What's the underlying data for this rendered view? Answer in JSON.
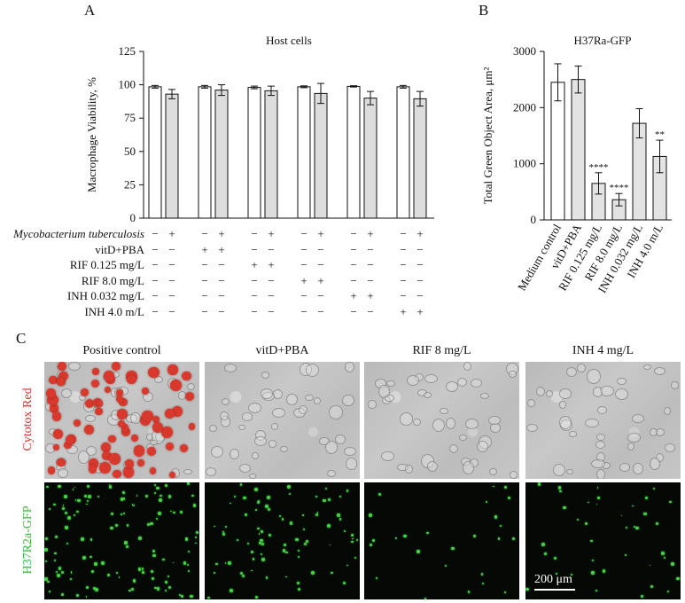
{
  "panels": {
    "a": "A",
    "b": "B",
    "c": "C"
  },
  "chart_data": [
    {
      "type": "bar",
      "title": "Host cells",
      "ylabel": "Macrophage Viability, %",
      "ylim": [
        0,
        125
      ],
      "yticks": [
        0,
        25,
        50,
        75,
        100,
        125
      ],
      "groups": 6,
      "bars": [
        {
          "mtb": "−",
          "value": 98.5,
          "err": 1.0
        },
        {
          "mtb": "+",
          "value": 93.0,
          "err": 3.5
        },
        {
          "mtb": "−",
          "value": 98.5,
          "err": 1.0
        },
        {
          "mtb": "+",
          "value": 96.0,
          "err": 4.0
        },
        {
          "mtb": "−",
          "value": 98.0,
          "err": 1.0
        },
        {
          "mtb": "+",
          "value": 95.5,
          "err": 3.5
        },
        {
          "mtb": "−",
          "value": 98.5,
          "err": 0.7
        },
        {
          "mtb": "+",
          "value": 93.5,
          "err": 7.5
        },
        {
          "mtb": "−",
          "value": 98.8,
          "err": 0.5
        },
        {
          "mtb": "+",
          "value": 90.0,
          "err": 5.0
        },
        {
          "mtb": "−",
          "value": 98.5,
          "err": 1.0
        },
        {
          "mtb": "+",
          "value": 89.5,
          "err": 5.5
        }
      ],
      "treatment_rows": [
        {
          "label": "Mycobacterium tuberculosis",
          "italic": true,
          "marks": [
            "−",
            "+",
            "−",
            "+",
            "−",
            "+",
            "−",
            "+",
            "−",
            "+",
            "−",
            "+"
          ]
        },
        {
          "label": "vitD+PBA",
          "italic": false,
          "marks": [
            "−",
            "−",
            "+",
            "+",
            "−",
            "−",
            "−",
            "−",
            "−",
            "−",
            "−",
            "−"
          ]
        },
        {
          "label": "RIF 0.125 mg/L",
          "italic": false,
          "marks": [
            "−",
            "−",
            "−",
            "−",
            "+",
            "+",
            "−",
            "−",
            "−",
            "−",
            "−",
            "−"
          ]
        },
        {
          "label": "RIF 8.0 mg/L",
          "italic": false,
          "marks": [
            "−",
            "−",
            "−",
            "−",
            "−",
            "−",
            "+",
            "+",
            "−",
            "−",
            "−",
            "−"
          ]
        },
        {
          "label": "INH 0.032 mg/L",
          "italic": false,
          "marks": [
            "−",
            "−",
            "−",
            "−",
            "−",
            "−",
            "−",
            "−",
            "+",
            "+",
            "−",
            "−"
          ]
        },
        {
          "label": "INH 4.0 m/L",
          "italic": false,
          "marks": [
            "−",
            "−",
            "−",
            "−",
            "−",
            "−",
            "−",
            "−",
            "−",
            "−",
            "+",
            "+"
          ]
        }
      ]
    },
    {
      "type": "bar",
      "title": "H37Ra-GFP",
      "ylabel": "Total Green Object Area, μm²",
      "ylim": [
        0,
        3000
      ],
      "yticks": [
        0,
        1000,
        2000,
        3000
      ],
      "categories": [
        "Medium control",
        "vitD+PBA",
        "RIF 0.125 mg/L",
        "RIF 8.0 mg/L",
        "INH 0.032 mg/L",
        "INH 4.0 m/L"
      ],
      "values": [
        2450,
        2500,
        650,
        360,
        1720,
        1130
      ],
      "errors": [
        330,
        240,
        190,
        110,
        260,
        290
      ],
      "significance": [
        "",
        "",
        "****",
        "****",
        "",
        "**"
      ],
      "fills": [
        "#ffffff",
        "#e3e3e3",
        "#e3e3e3",
        "#e3e3e3",
        "#e3e3e3",
        "#e3e3e3"
      ]
    }
  ],
  "micrographs": {
    "columns": [
      "Positive control",
      "vitD+PBA",
      "RIF 8 mg/L",
      "INH 4 mg/L"
    ],
    "rows": [
      {
        "label": "Cytotox Red",
        "color": "#d9302b",
        "style": "brightfield"
      },
      {
        "label": "H37R2a-GFP",
        "color": "#3cb53c",
        "style": "fluorescence"
      }
    ],
    "scale_bar": "200 μm"
  },
  "colors": {
    "red_stain": "#d8392c",
    "gfp": "#45d245",
    "sig": "#777777"
  }
}
